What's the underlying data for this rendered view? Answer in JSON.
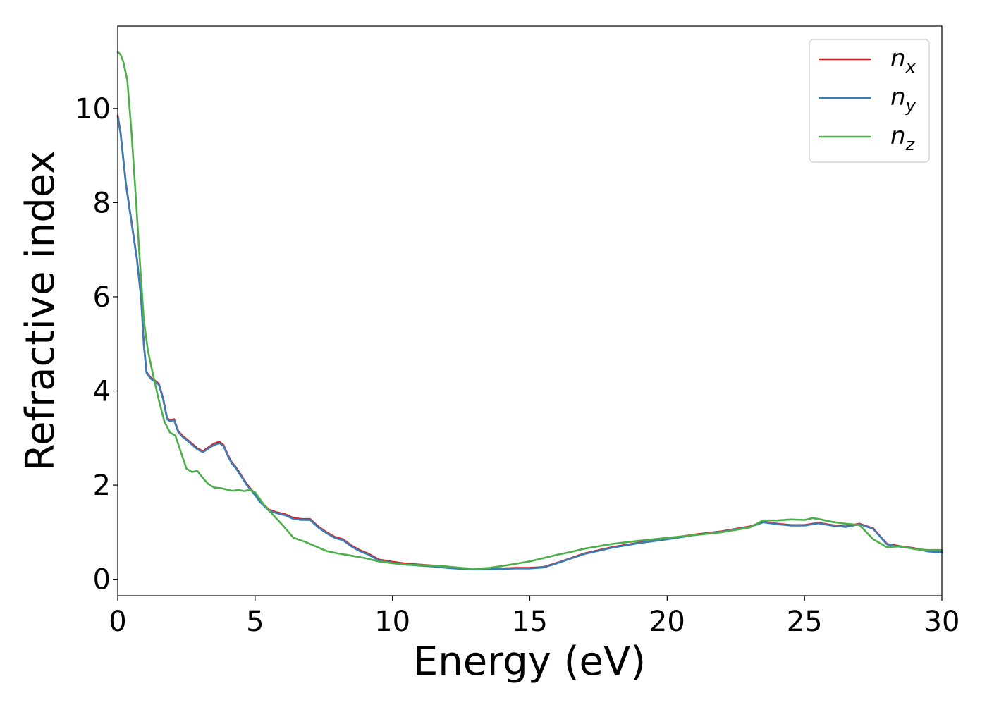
{
  "chart_data": {
    "type": "line",
    "xlabel": "Energy (eV)",
    "ylabel": "Refractive index",
    "xlim": [
      0,
      30
    ],
    "ylim": [
      -0.35,
      11.75
    ],
    "xticks": [
      0,
      5,
      10,
      15,
      20,
      25,
      30
    ],
    "yticks": [
      0,
      2,
      4,
      6,
      8,
      10
    ],
    "grid": false,
    "legend_position": "top-right",
    "series": [
      {
        "name": "n_x",
        "label_base": "n",
        "label_sub": "x",
        "color": "#e41a1c",
        "x": [
          0,
          0.1,
          0.3,
          0.5,
          0.7,
          0.85,
          0.95,
          1.05,
          1.2,
          1.35,
          1.5,
          1.65,
          1.8,
          1.9,
          2.05,
          2.2,
          2.35,
          2.5,
          2.7,
          2.9,
          3.1,
          3.3,
          3.5,
          3.7,
          3.85,
          4.0,
          4.15,
          4.3,
          4.5,
          4.7,
          4.9,
          5.2,
          5.5,
          5.8,
          6.1,
          6.4,
          6.7,
          7.0,
          7.3,
          7.6,
          7.9,
          8.2,
          8.5,
          8.8,
          9.1,
          9.5,
          10.0,
          10.5,
          11.0,
          11.5,
          12.0,
          12.5,
          13.0,
          13.5,
          14.0,
          14.5,
          15.0,
          15.5,
          16.0,
          16.5,
          17.0,
          18.0,
          19.0,
          20.0,
          21.0,
          22.0,
          23.0,
          23.5,
          24.0,
          24.5,
          25.0,
          25.5,
          26.0,
          26.5,
          27.0,
          27.5,
          28.0,
          28.5,
          29.0,
          29.5,
          30.0
        ],
        "y": [
          9.85,
          9.5,
          8.4,
          7.6,
          6.8,
          6.0,
          5.0,
          4.4,
          4.28,
          4.22,
          4.15,
          3.85,
          3.42,
          3.38,
          3.4,
          3.15,
          3.05,
          2.98,
          2.88,
          2.78,
          2.72,
          2.8,
          2.88,
          2.92,
          2.85,
          2.65,
          2.48,
          2.38,
          2.2,
          2.02,
          1.88,
          1.65,
          1.48,
          1.42,
          1.38,
          1.3,
          1.28,
          1.28,
          1.12,
          1.0,
          0.9,
          0.85,
          0.72,
          0.62,
          0.55,
          0.42,
          0.37,
          0.33,
          0.31,
          0.29,
          0.26,
          0.23,
          0.22,
          0.22,
          0.23,
          0.24,
          0.24,
          0.26,
          0.35,
          0.45,
          0.55,
          0.68,
          0.78,
          0.86,
          0.95,
          1.02,
          1.12,
          1.22,
          1.18,
          1.15,
          1.15,
          1.2,
          1.15,
          1.12,
          1.18,
          1.08,
          0.75,
          0.7,
          0.66,
          0.6,
          0.58
        ]
      },
      {
        "name": "n_y",
        "label_base": "n",
        "label_sub": "y",
        "color": "#377eb8",
        "x": [
          0,
          0.1,
          0.3,
          0.5,
          0.7,
          0.85,
          0.95,
          1.05,
          1.2,
          1.35,
          1.5,
          1.65,
          1.8,
          1.9,
          2.05,
          2.2,
          2.35,
          2.5,
          2.7,
          2.9,
          3.1,
          3.3,
          3.5,
          3.7,
          3.85,
          4.0,
          4.15,
          4.3,
          4.5,
          4.7,
          4.9,
          5.2,
          5.5,
          5.8,
          6.1,
          6.4,
          6.7,
          7.0,
          7.3,
          7.6,
          7.9,
          8.2,
          8.5,
          8.8,
          9.1,
          9.5,
          10.0,
          10.5,
          11.0,
          11.5,
          12.0,
          12.5,
          13.0,
          13.5,
          14.0,
          14.5,
          15.0,
          15.5,
          16.0,
          16.5,
          17.0,
          18.0,
          19.0,
          20.0,
          21.0,
          22.0,
          23.0,
          23.5,
          24.0,
          24.5,
          25.0,
          25.5,
          26.0,
          26.5,
          27.0,
          27.5,
          28.0,
          28.5,
          29.0,
          29.5,
          30.0
        ],
        "y": [
          9.82,
          9.48,
          8.38,
          7.58,
          6.78,
          5.98,
          4.98,
          4.38,
          4.26,
          4.2,
          4.13,
          3.83,
          3.4,
          3.36,
          3.38,
          3.13,
          3.03,
          2.96,
          2.86,
          2.76,
          2.7,
          2.78,
          2.85,
          2.89,
          2.83,
          2.63,
          2.46,
          2.36,
          2.18,
          2.0,
          1.86,
          1.63,
          1.46,
          1.4,
          1.36,
          1.28,
          1.26,
          1.26,
          1.1,
          0.98,
          0.88,
          0.83,
          0.7,
          0.6,
          0.53,
          0.4,
          0.35,
          0.31,
          0.29,
          0.27,
          0.24,
          0.22,
          0.21,
          0.21,
          0.22,
          0.23,
          0.23,
          0.25,
          0.34,
          0.44,
          0.54,
          0.67,
          0.77,
          0.85,
          0.94,
          1.01,
          1.11,
          1.21,
          1.17,
          1.14,
          1.14,
          1.19,
          1.14,
          1.11,
          1.17,
          1.07,
          0.74,
          0.69,
          0.65,
          0.59,
          0.57
        ]
      },
      {
        "name": "n_z",
        "label_base": "n",
        "label_sub": "z",
        "color": "#4daf4a",
        "x": [
          0,
          0.1,
          0.2,
          0.35,
          0.5,
          0.65,
          0.8,
          0.95,
          1.1,
          1.3,
          1.5,
          1.7,
          1.9,
          2.1,
          2.3,
          2.5,
          2.7,
          2.9,
          3.1,
          3.3,
          3.5,
          3.8,
          4.0,
          4.2,
          4.4,
          4.6,
          4.8,
          5.0,
          5.3,
          5.6,
          6.0,
          6.4,
          6.8,
          7.2,
          7.6,
          8.0,
          8.5,
          9.0,
          9.5,
          10.0,
          10.5,
          11.0,
          11.5,
          12.0,
          12.5,
          13.0,
          13.5,
          14.0,
          14.5,
          15.0,
          15.5,
          16.0,
          16.5,
          17.0,
          18.0,
          19.0,
          20.0,
          21.0,
          22.0,
          23.0,
          23.5,
          24.0,
          24.5,
          25.0,
          25.3,
          25.6,
          26.0,
          26.5,
          27.0,
          27.5,
          28.0,
          28.5,
          29.0,
          29.5,
          30.0
        ],
        "y": [
          11.2,
          11.15,
          11.0,
          10.6,
          9.5,
          8.2,
          6.8,
          5.5,
          4.85,
          4.3,
          3.8,
          3.35,
          3.12,
          3.05,
          2.7,
          2.35,
          2.28,
          2.3,
          2.15,
          2.02,
          1.95,
          1.93,
          1.9,
          1.88,
          1.9,
          1.87,
          1.9,
          1.85,
          1.6,
          1.4,
          1.15,
          0.88,
          0.8,
          0.7,
          0.6,
          0.55,
          0.5,
          0.45,
          0.38,
          0.34,
          0.31,
          0.3,
          0.29,
          0.27,
          0.24,
          0.22,
          0.24,
          0.28,
          0.33,
          0.38,
          0.45,
          0.52,
          0.58,
          0.65,
          0.75,
          0.82,
          0.88,
          0.94,
          1.0,
          1.1,
          1.25,
          1.25,
          1.27,
          1.26,
          1.3,
          1.27,
          1.22,
          1.18,
          1.15,
          0.85,
          0.68,
          0.7,
          0.64,
          0.62,
          0.62
        ]
      }
    ]
  }
}
